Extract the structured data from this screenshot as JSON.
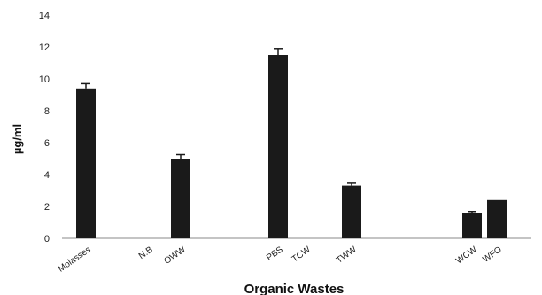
{
  "chart_data": {
    "type": "bar",
    "categories": [
      "Molasses",
      "N.B",
      "OWW",
      "PBS",
      "TCW",
      "TWW",
      "WCW",
      "WFO"
    ],
    "values": [
      9.4,
      0,
      5.0,
      11.5,
      0,
      3.3,
      1.6,
      2.4
    ],
    "errors": [
      0.3,
      0,
      0.25,
      0.4,
      0,
      0.15,
      0.08,
      0
    ],
    "xlabel": "Organic Wastes",
    "ylabel": "µg/ml",
    "ylim": [
      0,
      14
    ],
    "yticks": [
      0,
      2,
      4,
      6,
      8,
      10,
      12,
      14
    ],
    "grid": false,
    "bar_color": "#1a1a1a"
  }
}
